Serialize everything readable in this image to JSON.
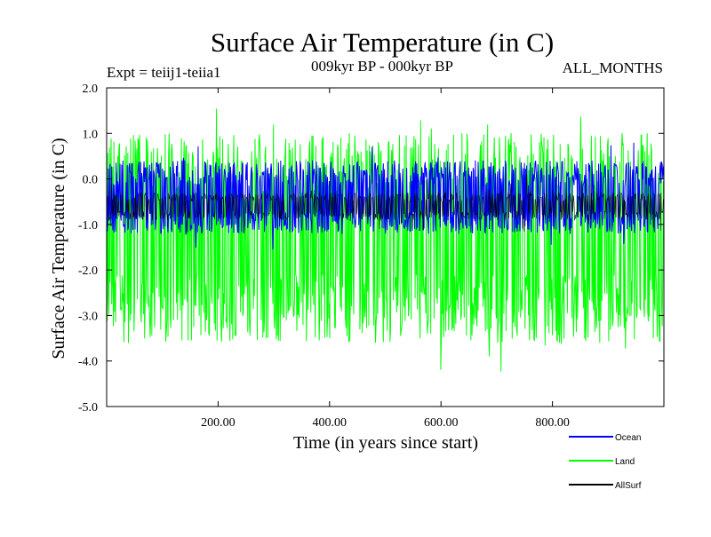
{
  "chart_data": {
    "type": "line",
    "title": "Surface Air Temperature (in C)",
    "subtitle": "009kyr BP - 000kyr BP",
    "annotation_left": "Expt = teiij1-teiia1",
    "annotation_right": "ALL_MONTHS",
    "xlabel": "Time (in years since start)",
    "ylabel": "Surface Air Temperature (in C)",
    "xlim": [
      0,
      1000
    ],
    "ylim": [
      -5.0,
      2.0
    ],
    "x_ticks": [
      200,
      400,
      600,
      800
    ],
    "x_tick_labels": [
      "200.00",
      "400.00",
      "600.00",
      "800.00"
    ],
    "y_ticks": [
      -5,
      -4,
      -3,
      -2,
      -1,
      0,
      1,
      2
    ],
    "y_tick_labels": [
      "-5.0",
      "-4.0",
      "-3.0",
      "-2.0",
      "-1.0",
      "0.0",
      "1.0",
      "2.0"
    ],
    "grid": false,
    "legend_position": "bottom-right",
    "series": [
      {
        "name": "Land",
        "color": "#00ff00",
        "mean": -1.3,
        "band": [
          -3.6,
          1.0
        ],
        "extremes": [
          -4.7,
          1.6
        ]
      },
      {
        "name": "Ocean",
        "color": "#0000ff",
        "mean": -0.45,
        "band": [
          -1.2,
          0.4
        ],
        "extremes": [
          -1.6,
          0.8
        ]
      },
      {
        "name": "AllSurf",
        "color": "#000000",
        "mean": -0.6,
        "band": [
          -0.9,
          -0.3
        ],
        "extremes": [
          -1.3,
          0.1
        ]
      }
    ],
    "legend": [
      {
        "name": "Ocean",
        "color": "#0000ff"
      },
      {
        "name": "Land",
        "color": "#00ff00"
      },
      {
        "name": "AllSurf",
        "color": "#000000"
      }
    ]
  }
}
